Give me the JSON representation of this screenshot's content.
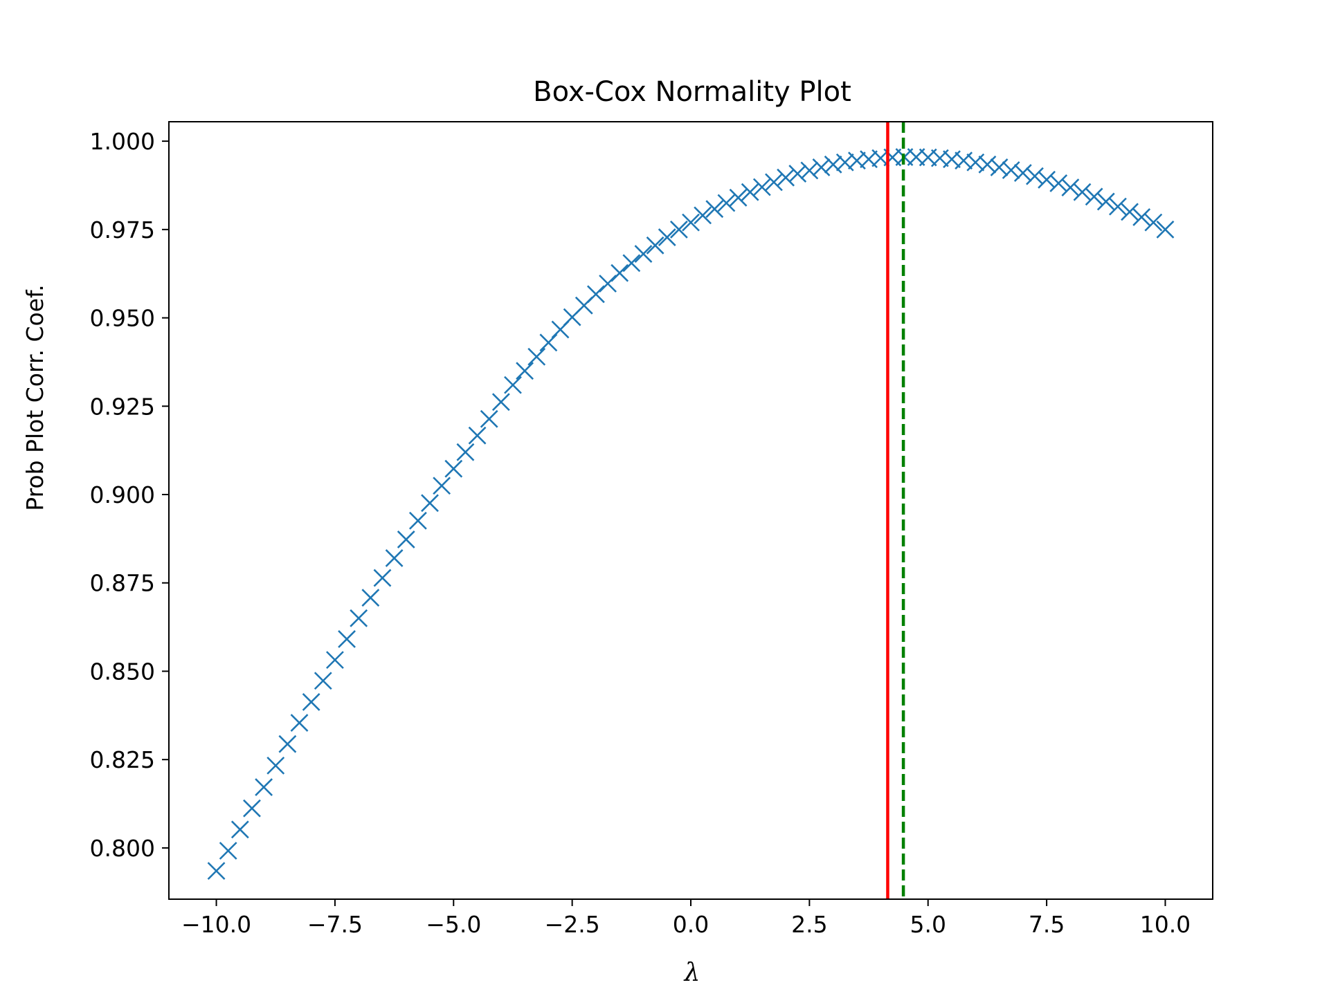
{
  "chart_data": {
    "type": "scatter",
    "title": "Box-Cox Normality Plot",
    "xlabel": "λ",
    "ylabel": "Prob Plot Corr. Coef.",
    "xlim": [
      -11.0,
      11.0
    ],
    "ylim": [
      0.7855,
      1.0055
    ],
    "xticks": [
      -10.0,
      -7.5,
      -5.0,
      -2.5,
      0.0,
      2.5,
      5.0,
      7.5,
      10.0
    ],
    "xtick_labels": [
      "−10.0",
      "−7.5",
      "−5.0",
      "−2.5",
      "0.0",
      "2.5",
      "5.0",
      "7.5",
      "10.0"
    ],
    "yticks": [
      0.8,
      0.825,
      0.85,
      0.875,
      0.9,
      0.925,
      0.95,
      0.975,
      1.0
    ],
    "ytick_labels": [
      "0.800",
      "0.825",
      "0.850",
      "0.875",
      "0.900",
      "0.925",
      "0.950",
      "0.975",
      "1.000"
    ],
    "grid": false,
    "marker": "x",
    "marker_color": "#1f77b4",
    "series": [
      {
        "x": [
          -10.0,
          -9.75,
          -9.5,
          -9.25,
          -9.0,
          -8.75,
          -8.5,
          -8.25,
          -8.0,
          -7.75,
          -7.5,
          -7.25,
          -7.0,
          -6.75,
          -6.5,
          -6.25,
          -6.0,
          -5.75,
          -5.5,
          -5.25,
          -5.0,
          -4.75,
          -4.5,
          -4.25,
          -4.0,
          -3.75,
          -3.5,
          -3.25,
          -3.0,
          -2.75,
          -2.5,
          -2.25,
          -2.0,
          -1.75,
          -1.5,
          -1.25,
          -1.0,
          -0.75,
          -0.5,
          -0.25,
          0.0,
          0.25,
          0.5,
          0.75,
          1.0,
          1.25,
          1.5,
          1.75,
          2.0,
          2.25,
          2.5,
          2.75,
          3.0,
          3.25,
          3.5,
          3.75,
          4.0,
          4.25,
          4.5,
          4.75,
          5.0,
          5.25,
          5.5,
          5.75,
          6.0,
          6.25,
          6.5,
          6.75,
          7.0,
          7.25,
          7.5,
          7.75,
          8.0,
          8.25,
          8.5,
          8.75,
          9.0,
          9.25,
          9.5,
          9.75,
          10.0
        ],
        "y": [
          0.7935,
          0.7992,
          0.8052,
          0.8112,
          0.8172,
          0.8233,
          0.8294,
          0.8354,
          0.8413,
          0.8473,
          0.8532,
          0.8591,
          0.865,
          0.8708,
          0.8764,
          0.882,
          0.8873,
          0.8926,
          0.8976,
          0.9025,
          0.9073,
          0.912,
          0.9167,
          0.9214,
          0.9262,
          0.931,
          0.935,
          0.939,
          0.943,
          0.9467,
          0.9502,
          0.9535,
          0.9567,
          0.9597,
          0.9627,
          0.9655,
          0.9681,
          0.9705,
          0.9728,
          0.975,
          0.977,
          0.979,
          0.9808,
          0.9825,
          0.984,
          0.9856,
          0.987,
          0.9884,
          0.9897,
          0.9908,
          0.9917,
          0.9926,
          0.9934,
          0.994,
          0.9945,
          0.9949,
          0.9952,
          0.9954,
          0.9955,
          0.9955,
          0.9954,
          0.9952,
          0.9949,
          0.9945,
          0.994,
          0.9934,
          0.9926,
          0.9918,
          0.991,
          0.9901,
          0.9891,
          0.9881,
          0.9869,
          0.9856,
          0.9843,
          0.9829,
          0.9815,
          0.98,
          0.9785,
          0.977,
          0.975
        ]
      }
    ],
    "vlines": [
      {
        "x": 4.15,
        "color": "#ff0000",
        "style": "solid"
      },
      {
        "x": 4.48,
        "color": "#008000",
        "style": "dashed"
      }
    ]
  }
}
